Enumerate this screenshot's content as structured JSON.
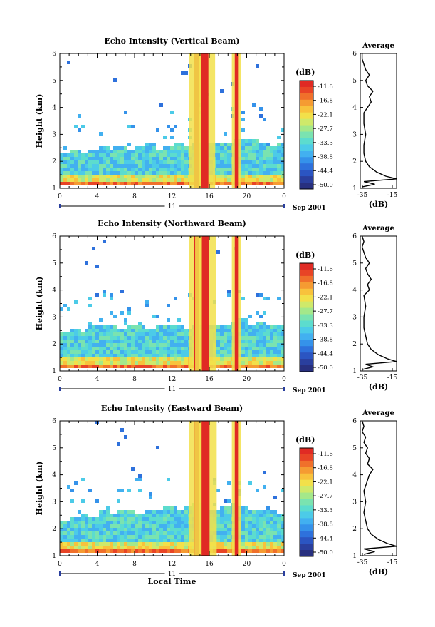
{
  "colors": {
    "scale": [
      "#28307f",
      "#2a3f9e",
      "#2b55c2",
      "#2e71dc",
      "#3592ea",
      "#42b0f0",
      "#4ccbe8",
      "#5cdcce",
      "#7ae3b0",
      "#a4e88a",
      "#cfe96a",
      "#f2e04a",
      "#f8c23c",
      "#f59b32",
      "#f0702b",
      "#e84426",
      "#e02a24"
    ],
    "line": "#000000"
  },
  "chart_data": [
    {
      "type": "heatmap",
      "title": "Echo Intensity (Vertical Beam)",
      "ylabel": "Height (km)",
      "xlabel": "",
      "x_ticks": [
        "0",
        "4",
        "8",
        "12",
        "16",
        "20",
        "0"
      ],
      "y_ticks": [
        "1",
        "2",
        "3",
        "4",
        "5",
        "6"
      ],
      "xlim": [
        0,
        24
      ],
      "ylim": [
        1,
        6
      ],
      "date_day": "11",
      "date_label": "Sep 2001",
      "colorbar_unit": "(dB)",
      "colorbar_ticks": [
        "-11.6",
        "-16.8",
        "-22.1",
        "-27.7",
        "-33.3",
        "-38.8",
        "-44.4",
        "-50.0"
      ],
      "cloud_top_km": [
        2.4,
        2.5,
        2.4,
        2.5,
        2.6,
        2.5,
        2.6,
        2.5,
        2.6,
        2.7,
        2.5,
        2.6,
        2.7,
        2.6,
        2.7,
        2.8,
        2.7,
        2.8,
        2.8,
        2.9,
        2.9,
        2.8,
        2.6,
        2.7,
        2.6
      ],
      "spikes": [
        {
          "hour": 14.6,
          "width": 0.55
        },
        {
          "hour": 15.5,
          "width": 0.8
        },
        {
          "hour": 18.9,
          "width": 0.35
        }
      ],
      "average": {
        "title": "Average",
        "xlabel": "(dB)",
        "x_ticks": [
          "-35",
          "-15"
        ],
        "xlim": [
          -35,
          -15
        ],
        "height_km": [
          1.05,
          1.15,
          1.25,
          1.35,
          1.45,
          1.6,
          1.8,
          2.0,
          2.3,
          2.6,
          3.0,
          3.4,
          3.8,
          4.0,
          4.2,
          4.4,
          4.6,
          4.8,
          5.0,
          5.2,
          5.4,
          5.6,
          5.8,
          6.0
        ],
        "value_db": [
          -34,
          -27,
          -33,
          -15,
          -21,
          -26,
          -30,
          -32,
          -33,
          -33,
          -32,
          -33,
          -33,
          -31,
          -29,
          -30,
          -28,
          -31,
          -32,
          -30,
          -32,
          -33,
          -34,
          -34
        ]
      }
    },
    {
      "type": "heatmap",
      "title": "Echo Intensity (Northward Beam)",
      "ylabel": "Height (km)",
      "xlabel": "",
      "x_ticks": [
        "0",
        "4",
        "8",
        "12",
        "16",
        "20",
        "0"
      ],
      "y_ticks": [
        "1",
        "2",
        "3",
        "4",
        "5",
        "6"
      ],
      "xlim": [
        0,
        24
      ],
      "ylim": [
        1,
        6
      ],
      "date_day": "11",
      "date_label": "Sep 2001",
      "colorbar_unit": "(dB)",
      "colorbar_ticks": [
        "-11.6",
        "-16.8",
        "-22.1",
        "-27.7",
        "-33.3",
        "-38.8",
        "-44.4",
        "-50.0"
      ],
      "cloud_top_km": [
        2.5,
        2.6,
        2.5,
        2.7,
        2.8,
        2.7,
        2.6,
        2.7,
        2.8,
        2.6,
        2.7,
        2.8,
        2.7,
        2.6,
        2.8,
        2.9,
        2.8,
        2.7,
        2.9,
        3.0,
        2.8,
        2.9,
        2.7,
        2.8,
        2.7
      ],
      "spikes": [
        {
          "hour": 14.6,
          "width": 0.55
        },
        {
          "hour": 15.6,
          "width": 0.8
        },
        {
          "hour": 18.9,
          "width": 0.35
        }
      ],
      "average": {
        "title": "Average",
        "xlabel": "(dB)",
        "x_ticks": [
          "-35",
          "-15"
        ],
        "xlim": [
          -35,
          -15
        ],
        "height_km": [
          1.05,
          1.15,
          1.25,
          1.35,
          1.45,
          1.6,
          1.8,
          2.0,
          2.3,
          2.6,
          3.0,
          3.4,
          3.8,
          4.0,
          4.2,
          4.4,
          4.6,
          4.8,
          5.0,
          5.2,
          5.4,
          5.6,
          5.8,
          6.0
        ],
        "value_db": [
          -34,
          -28,
          -32,
          -15,
          -20,
          -25,
          -29,
          -31,
          -32,
          -33,
          -33,
          -32,
          -33,
          -30,
          -31,
          -29,
          -31,
          -32,
          -30,
          -32,
          -33,
          -34,
          -33,
          -34
        ]
      }
    },
    {
      "type": "heatmap",
      "title": "Echo Intensity (Eastward Beam)",
      "ylabel": "Height (km)",
      "xlabel": "Local Time",
      "x_ticks": [
        "0",
        "4",
        "8",
        "12",
        "16",
        "20",
        "0"
      ],
      "y_ticks": [
        "1",
        "2",
        "3",
        "4",
        "5",
        "6"
      ],
      "xlim": [
        0,
        24
      ],
      "ylim": [
        1,
        6
      ],
      "date_day": "11",
      "date_label": "Sep 2001",
      "colorbar_unit": "(dB)",
      "colorbar_ticks": [
        "-11.6",
        "-16.8",
        "-22.1",
        "-27.7",
        "-33.3",
        "-38.8",
        "-44.4",
        "-50.0"
      ],
      "cloud_top_km": [
        2.4,
        2.5,
        2.6,
        2.5,
        2.7,
        2.6,
        2.8,
        2.7,
        2.6,
        2.8,
        2.7,
        2.9,
        2.8,
        2.9,
        3.0,
        2.9,
        2.8,
        2.9,
        3.0,
        2.9,
        2.7,
        2.8,
        2.7,
        2.6,
        2.7
      ],
      "spikes": [
        {
          "hour": 14.6,
          "width": 0.55
        },
        {
          "hour": 15.6,
          "width": 0.85
        },
        {
          "hour": 18.9,
          "width": 0.35
        }
      ],
      "average": {
        "title": "Average",
        "xlabel": "(dB)",
        "x_ticks": [
          "-35",
          "-15"
        ],
        "xlim": [
          -35,
          -15
        ],
        "height_km": [
          1.05,
          1.15,
          1.25,
          1.35,
          1.45,
          1.6,
          1.8,
          2.0,
          2.3,
          2.6,
          3.0,
          3.4,
          3.8,
          4.0,
          4.2,
          4.4,
          4.6,
          4.8,
          5.0,
          5.2,
          5.4,
          5.6,
          5.8,
          6.0
        ],
        "value_db": [
          -33,
          -27,
          -33,
          -15,
          -20,
          -25,
          -29,
          -31,
          -32,
          -33,
          -32,
          -33,
          -31,
          -30,
          -28,
          -31,
          -30,
          -32,
          -31,
          -33,
          -32,
          -34,
          -33,
          -34
        ]
      }
    }
  ]
}
